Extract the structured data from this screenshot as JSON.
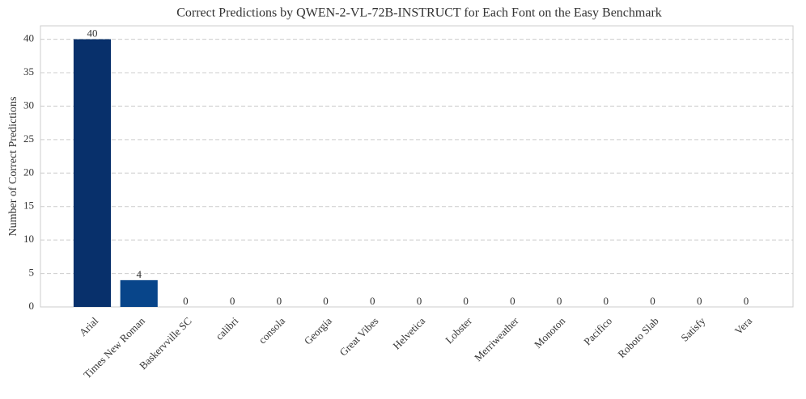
{
  "chart_data": {
    "type": "bar",
    "title": "Correct Predictions by QWEN-2-VL-72B-INSTRUCT for Each Font on the Easy Benchmark",
    "y_label": "Number of Correct Predictions",
    "categories": [
      "Arial",
      "Times New Roman",
      "Baskervville SC",
      "calibri",
      "consola",
      "Georgia",
      "Great Vibes",
      "Helvetica",
      "Lobster",
      "Merriweather",
      "Monoton",
      "Pacifico",
      "Roboto Slab",
      "Satisfy",
      "Vera"
    ],
    "values": [
      40,
      4,
      0,
      0,
      0,
      0,
      0,
      0,
      0,
      0,
      0,
      0,
      0,
      0,
      0
    ],
    "colors": [
      "#08306b",
      "#08458a",
      "#0a559f",
      "#1764ab",
      "#2473b6",
      "#3383be",
      "#4292c6",
      "#539ecd",
      "#63a8d3",
      "#79b5d9",
      "#8fc2de",
      "#a4cce3",
      "#b8d5ea",
      "#c8ddf0",
      "#d4e4f4"
    ],
    "ylim": [
      0,
      42
    ],
    "yticks": [
      0,
      5,
      10,
      15,
      20,
      25,
      30,
      35,
      40
    ],
    "grid": true
  }
}
